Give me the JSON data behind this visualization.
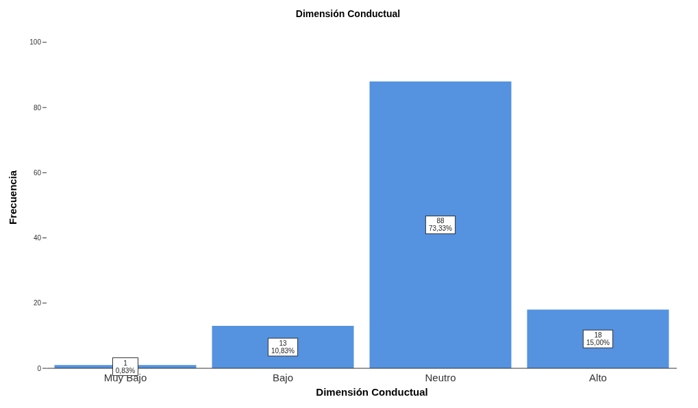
{
  "chart_data": {
    "type": "bar",
    "title": "Dimensión Conductual",
    "xlabel": "Dimensión Conductual",
    "ylabel": "Frecuencia",
    "categories": [
      "Muy Bajo",
      "Bajo",
      "Neutro",
      "Alto"
    ],
    "values": [
      1,
      13,
      88,
      18
    ],
    "color": "#5592e0",
    "value_labels": [
      "1\n0,83%",
      "13\n10,83%",
      "88\n73,33%",
      "18\n15,00%"
    ],
    "ylim": [
      0,
      105
    ],
    "yticks": [
      0,
      20,
      40,
      60,
      80,
      100
    ],
    "grid": false
  }
}
